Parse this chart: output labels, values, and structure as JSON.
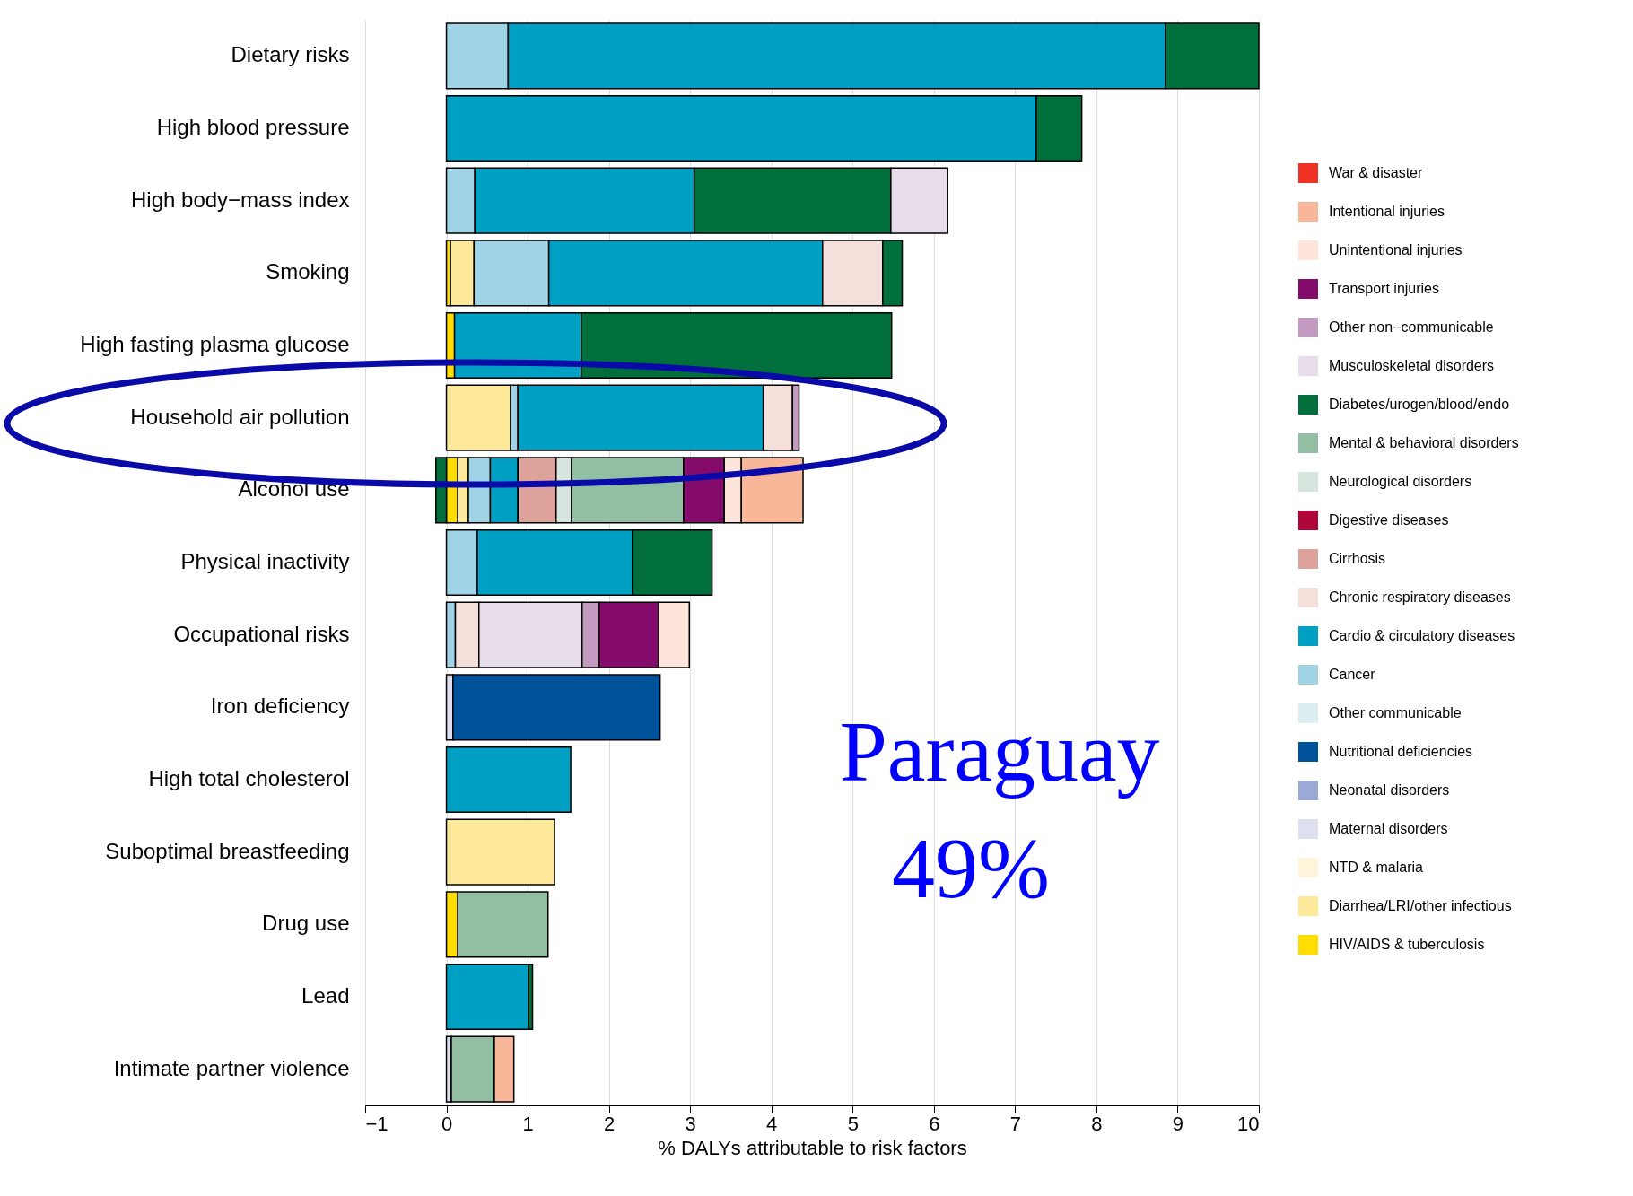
{
  "chart_data": {
    "type": "bar",
    "orientation": "horizontal",
    "stacked": true,
    "categories": [
      "Dietary risks",
      "High blood pressure",
      "High body−mass index",
      "Smoking",
      "High fasting plasma glucose",
      "Household air pollution",
      "Alcohol use",
      "Physical inactivity",
      "Occupational risks",
      "Iron deficiency",
      "High total cholesterol",
      "Suboptimal breastfeeding",
      "Drug use",
      "Lead",
      "Intimate partner violence"
    ],
    "xlabel": "% DALYs attributable to risk factors",
    "xlim": [
      -1,
      10
    ],
    "xticks": [
      -1,
      0,
      1,
      2,
      3,
      4,
      5,
      6,
      7,
      8,
      9,
      10
    ],
    "grid": "x",
    "legend": "right",
    "annotations": [
      "Paraguay",
      "49%"
    ],
    "series": [
      {
        "name": "HIV/AIDS & tuberculosis",
        "color": "#ffdd00",
        "values": [
          null,
          null,
          null,
          0.05,
          0.1,
          null,
          0.14,
          null,
          null,
          null,
          null,
          null,
          0.14,
          null,
          null
        ]
      },
      {
        "name": "Diarrhea/LRI/other infectious",
        "color": "#fee99a",
        "values": [
          null,
          null,
          null,
          0.29,
          null,
          0.79,
          0.13,
          null,
          null,
          null,
          null,
          1.33,
          null,
          null,
          null
        ]
      },
      {
        "name": "NTD & malaria",
        "color": "#fdf5d9",
        "values": [
          null,
          null,
          null,
          null,
          null,
          null,
          null,
          null,
          null,
          null,
          null,
          null,
          null,
          null,
          null
        ]
      },
      {
        "name": "Maternal disorders",
        "color": "#dee0ef",
        "values": [
          null,
          null,
          null,
          null,
          null,
          null,
          null,
          null,
          null,
          0.08,
          null,
          null,
          null,
          null,
          0.06
        ]
      },
      {
        "name": "Neonatal disorders",
        "color": "#9ba9d6",
        "values": [
          null,
          null,
          null,
          null,
          null,
          null,
          null,
          null,
          null,
          null,
          null,
          null,
          null,
          null,
          null
        ]
      },
      {
        "name": "Nutritional deficiencies",
        "color": "#00529b",
        "values": [
          null,
          null,
          null,
          null,
          null,
          null,
          null,
          null,
          null,
          2.55,
          null,
          null,
          null,
          null,
          null
        ]
      },
      {
        "name": "Other communicable",
        "color": "#ddeef3",
        "values": [
          null,
          null,
          null,
          null,
          null,
          null,
          null,
          null,
          null,
          null,
          null,
          null,
          null,
          null,
          null
        ]
      },
      {
        "name": "Cancer",
        "color": "#9fd3e5",
        "values": [
          0.76,
          null,
          0.35,
          0.92,
          null,
          0.09,
          0.27,
          0.38,
          0.11,
          null,
          null,
          null,
          null,
          null,
          null
        ]
      },
      {
        "name": "Cardio & circulatory diseases",
        "color": "#00a0c4",
        "values": [
          8.09,
          7.26,
          2.7,
          3.37,
          1.56,
          3.02,
          0.34,
          1.91,
          null,
          null,
          1.53,
          null,
          null,
          1.01,
          null
        ]
      },
      {
        "name": "Chronic respiratory diseases",
        "color": "#f4dfdb",
        "values": [
          null,
          null,
          null,
          0.74,
          null,
          0.36,
          null,
          null,
          0.29,
          null,
          null,
          null,
          null,
          null,
          null
        ]
      },
      {
        "name": "Cirrhosis",
        "color": "#dea29d",
        "values": [
          null,
          null,
          null,
          null,
          null,
          null,
          0.47,
          null,
          null,
          null,
          null,
          null,
          null,
          null,
          null
        ]
      },
      {
        "name": "Digestive diseases",
        "color": "#b0053a",
        "values": [
          null,
          null,
          null,
          null,
          null,
          null,
          null,
          null,
          null,
          null,
          null,
          null,
          null,
          null,
          null
        ]
      },
      {
        "name": "Neurological disorders",
        "color": "#d6e5de",
        "values": [
          null,
          null,
          null,
          null,
          null,
          null,
          0.19,
          null,
          null,
          null,
          null,
          null,
          null,
          null,
          null
        ]
      },
      {
        "name": "Mental & behavioral disorders",
        "color": "#92bea3",
        "values": [
          null,
          null,
          null,
          null,
          null,
          null,
          1.38,
          null,
          null,
          null,
          null,
          null,
          1.11,
          null,
          0.53
        ]
      },
      {
        "name": "Diabetes/urogen/blood/endo",
        "color": "#006f3c",
        "values": [
          1.15,
          0.56,
          2.42,
          0.24,
          3.82,
          null,
          -0.13,
          0.98,
          null,
          null,
          null,
          null,
          null,
          0.05,
          null
        ]
      },
      {
        "name": "Musculoskeletal disorders",
        "color": "#e6dcea",
        "values": [
          null,
          null,
          0.7,
          null,
          null,
          null,
          null,
          null,
          1.27,
          null,
          null,
          null,
          null,
          null,
          null
        ]
      },
      {
        "name": "Other non−communicable",
        "color": "#c39bc0",
        "values": [
          null,
          null,
          null,
          null,
          null,
          0.08,
          null,
          null,
          0.21,
          null,
          null,
          null,
          null,
          null,
          null
        ]
      },
      {
        "name": "Transport injuries",
        "color": "#840b6b",
        "values": [
          null,
          null,
          null,
          null,
          null,
          null,
          0.5,
          null,
          0.73,
          null,
          null,
          null,
          null,
          null,
          null
        ]
      },
      {
        "name": "Unintentional injuries",
        "color": "#fde5dc",
        "values": [
          null,
          null,
          null,
          null,
          null,
          null,
          0.21,
          null,
          0.38,
          null,
          null,
          null,
          null,
          null,
          null
        ]
      },
      {
        "name": "Intentional injuries",
        "color": "#f9b79a",
        "values": [
          null,
          null,
          null,
          null,
          null,
          null,
          0.76,
          null,
          null,
          null,
          null,
          null,
          null,
          null,
          0.24
        ]
      },
      {
        "name": "War & disaster",
        "color": "#ee3224",
        "values": [
          null,
          null,
          null,
          null,
          null,
          null,
          null,
          null,
          null,
          null,
          null,
          null,
          null,
          null,
          null
        ]
      }
    ]
  }
}
